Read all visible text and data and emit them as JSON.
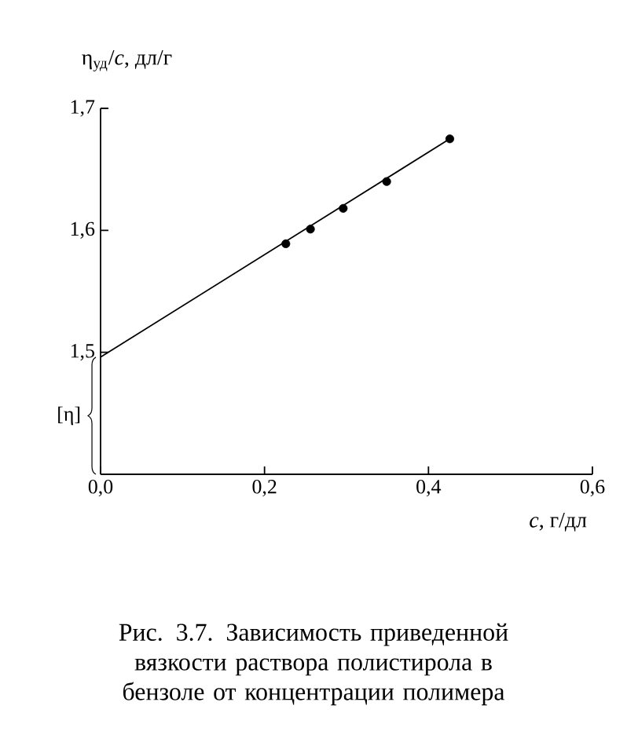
{
  "chart_data": {
    "type": "scatter",
    "xlabel": "*c*, г/дл",
    "ylabel": "η$_{уд}$/*c*, дл/г",
    "xlim": [
      0,
      0.6
    ],
    "ylim": [
      1.4,
      1.7
    ],
    "xticks": [
      {
        "value": 0,
        "label": "0,0"
      },
      {
        "value": 0.2,
        "label": "0,2"
      },
      {
        "value": 0.4,
        "label": "0,4"
      },
      {
        "value": 0.6,
        "label": "0,6"
      }
    ],
    "yticks": [
      {
        "value": 1.5,
        "label": "1,5"
      },
      {
        "value": 1.6,
        "label": "1,6"
      },
      {
        "value": 1.7,
        "label": "1,7"
      }
    ],
    "series": [
      {
        "marker": "circle",
        "color": "#000000",
        "x": [
          0.226,
          0.256,
          0.296,
          0.349,
          0.426
        ],
        "values": [
          1.589,
          1.601,
          1.618,
          1.64,
          1.675
        ]
      },
      {
        "type": "line",
        "marker": "none",
        "color": "#000000",
        "x": [
          0,
          0.426
        ],
        "values": [
          1.496,
          1.675
        ]
      }
    ],
    "annotations": [
      "[η]",
      "Рис. 3.7. Зависимость приведенной вязкости раствора полистирола в бензоле от концентрации полимера"
    ]
  }
}
